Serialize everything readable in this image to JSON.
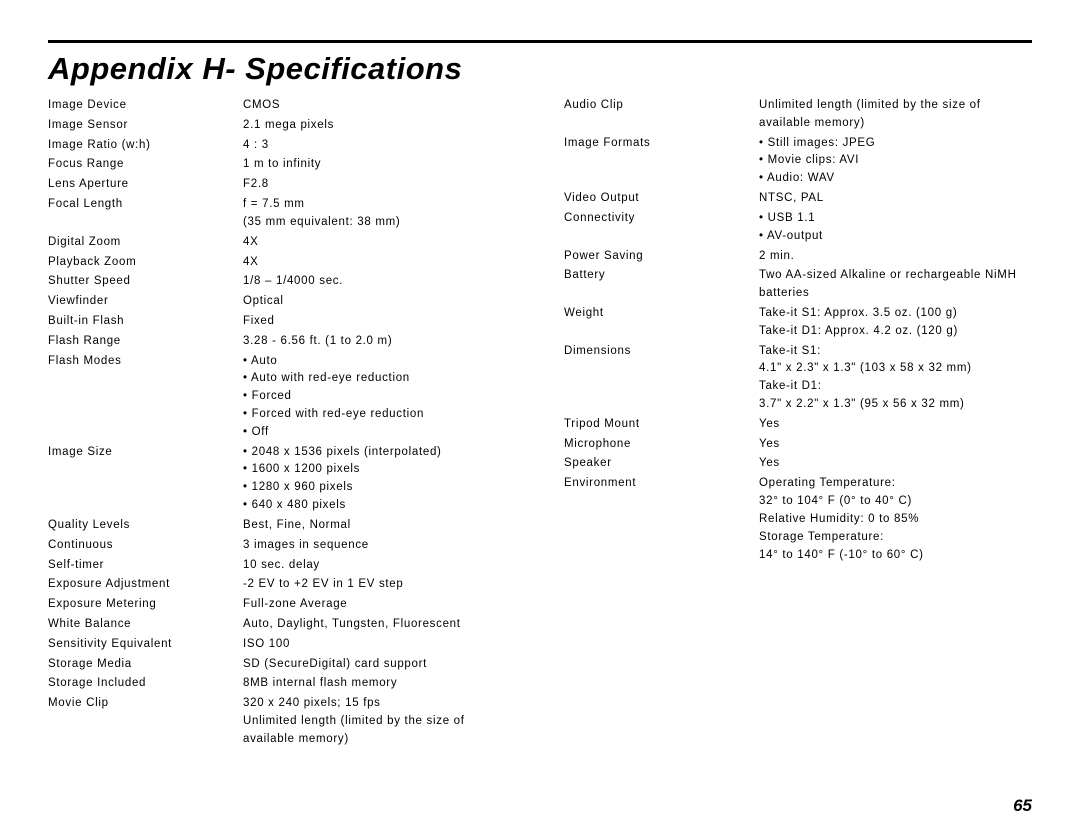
{
  "title": "Appendix H- Specifications",
  "page_number": "65",
  "left_specs": [
    {
      "label": "Image Device",
      "value": "CMOS"
    },
    {
      "label": "Image Sensor",
      "value": "2.1 mega pixels"
    },
    {
      "label": "Image Ratio (w:h)",
      "value": "4 : 3"
    },
    {
      "label": "Focus Range",
      "value": "1 m to infinity"
    },
    {
      "label": "Lens Aperture",
      "value": "F2.8"
    },
    {
      "label": "Focal Length",
      "lines": [
        "f = 7.5 mm",
        "(35 mm equivalent: 38 mm)"
      ]
    },
    {
      "label": "Digital Zoom",
      "value": "4X"
    },
    {
      "label": "Playback Zoom",
      "value": "4X"
    },
    {
      "label": "Shutter Speed",
      "value": "1/8 – 1/4000 sec."
    },
    {
      "label": "Viewfinder",
      "value": "Optical"
    },
    {
      "label": "Built-in Flash",
      "value": "Fixed"
    },
    {
      "label": "Flash Range",
      "value": "3.28 - 6.56 ft. (1 to 2.0 m)"
    },
    {
      "label": "Flash Modes",
      "bullets": [
        "Auto",
        "Auto with red-eye reduction",
        "Forced",
        "Forced with red-eye reduction",
        "Off"
      ]
    },
    {
      "label": "Image Size",
      "bullets": [
        "2048 x 1536 pixels (interpolated)",
        "1600 x 1200 pixels",
        "1280 x 960 pixels",
        "640 x 480 pixels"
      ]
    },
    {
      "label": "Quality Levels",
      "value": "Best, Fine, Normal"
    },
    {
      "label": "Continuous",
      "value": "3 images in sequence"
    },
    {
      "label": "Self-timer",
      "value": "10 sec. delay"
    },
    {
      "label": "Exposure Adjustment",
      "value": "-2 EV to +2 EV in 1 EV step"
    },
    {
      "label": "Exposure Metering",
      "value": "Full-zone Average"
    },
    {
      "label": "White Balance",
      "value": "Auto, Daylight, Tungsten, Fluorescent"
    },
    {
      "label": "Sensitivity Equivalent",
      "value": "ISO 100"
    },
    {
      "label": "Storage Media",
      "value": "SD (SecureDigital) card support"
    },
    {
      "label": "Storage Included",
      "value": "8MB internal flash memory"
    },
    {
      "label": "Movie Clip",
      "lines": [
        "320 x 240 pixels; 15 fps",
        "Unlimited length (limited by the size of available memory)"
      ]
    }
  ],
  "right_specs": [
    {
      "label": "Audio Clip",
      "value": "Unlimited length (limited by the size of available memory)"
    },
    {
      "label": "Image Formats",
      "bullets": [
        "Still images: JPEG",
        "Movie clips: AVI",
        "Audio: WAV"
      ]
    },
    {
      "label": "Video Output",
      "value": "NTSC, PAL"
    },
    {
      "label": "Connectivity",
      "bullets": [
        "USB 1.1",
        "AV-output"
      ]
    },
    {
      "label": "Power Saving",
      "value": "2 min."
    },
    {
      "label": "Battery",
      "value": "Two AA-sized Alkaline or rechargeable NiMH batteries"
    },
    {
      "label": "Weight",
      "lines": [
        "Take-it S1: Approx. 3.5 oz. (100 g)",
        "Take-it D1: Approx. 4.2 oz. (120 g)"
      ]
    },
    {
      "label": "Dimensions",
      "lines": [
        "Take-it S1:",
        "4.1\" x 2.3\" x 1.3\" (103 x 58 x 32 mm)",
        "Take-it D1:",
        "3.7\" x 2.2\" x 1.3\" (95 x 56 x 32 mm)"
      ]
    },
    {
      "label": "Tripod Mount",
      "value": "Yes"
    },
    {
      "label": "Microphone",
      "value": "Yes"
    },
    {
      "label": "Speaker",
      "value": "Yes"
    },
    {
      "label": "Environment",
      "lines": [
        "Operating Temperature:",
        "32° to 104° F (0° to 40° C)",
        "Relative Humidity: 0 to 85%",
        "Storage Temperature:",
        "14° to 140° F (-10° to 60° C)"
      ]
    }
  ],
  "style": {
    "text_color": "#000000",
    "background_color": "#ffffff",
    "title_fontsize": 31,
    "body_fontsize": 11.5,
    "letter_spacing": 0.7
  }
}
